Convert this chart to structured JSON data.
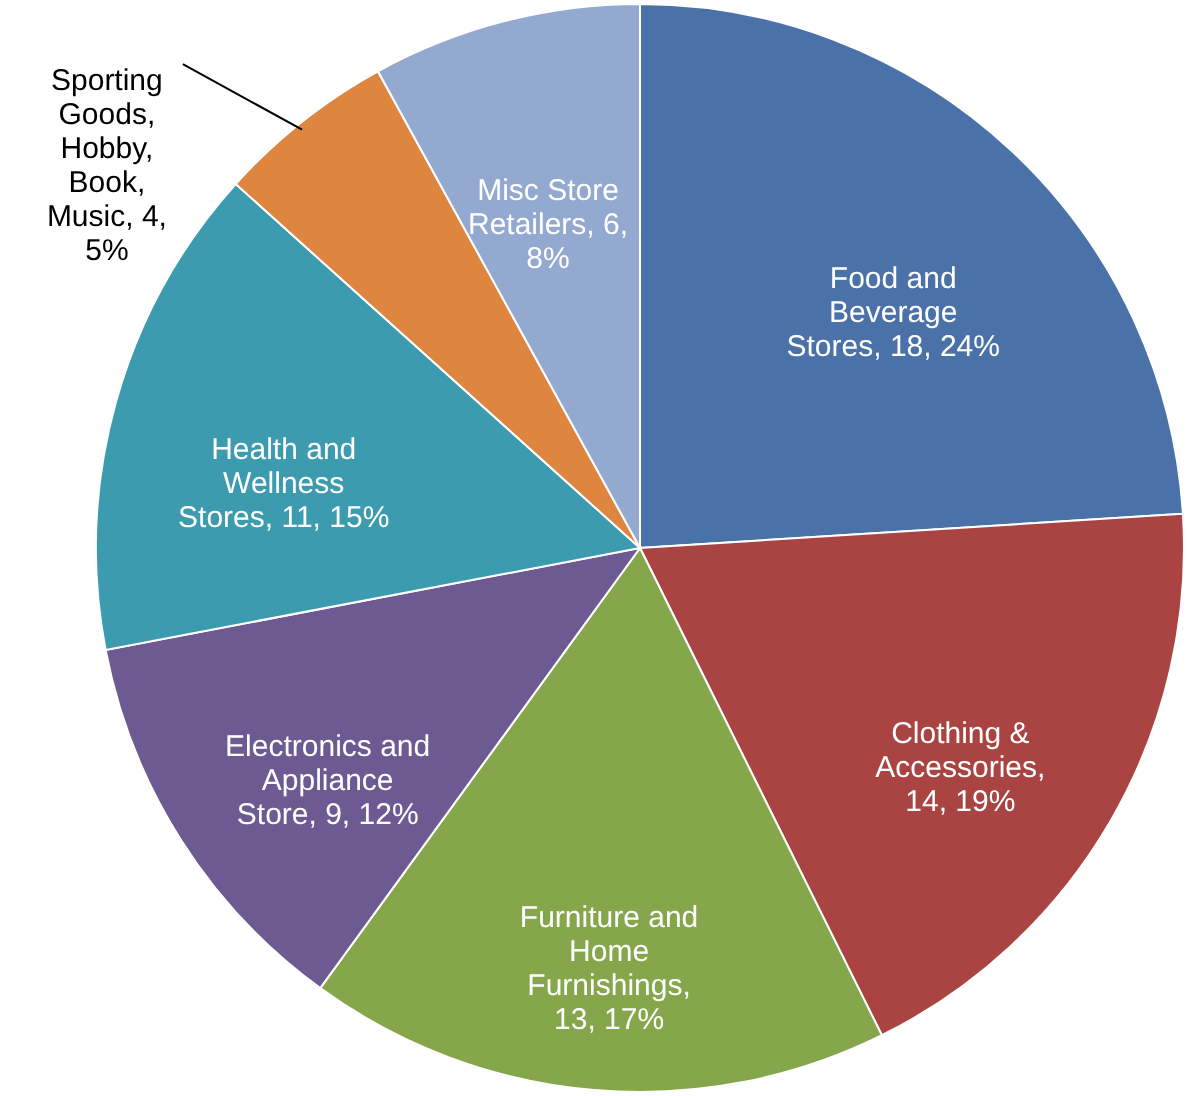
{
  "chart_data": {
    "type": "pie",
    "categories": [
      "Food and Beverage Stores",
      "Clothing & Accessories",
      "Furniture and Home Furnishings",
      "Electronics and Appliance Store",
      "Health and Wellness Stores",
      "Sporting Goods, Hobby, Book, Music",
      "Misc Store Retailers"
    ],
    "values": [
      18,
      14,
      13,
      9,
      11,
      4,
      6
    ],
    "value_labels": [
      ", 18, 24%",
      ", 14, 19%",
      ", 13, 17%",
      ", 9, 12%",
      ", 11, 15%",
      ", 4, 5%",
      ", 6, 8%"
    ],
    "colors": [
      "#4a72a8",
      "#a94442",
      "#86a64b",
      "#6e5a92",
      "#3d9bb0",
      "#de8540",
      "#93a9d0"
    ]
  }
}
